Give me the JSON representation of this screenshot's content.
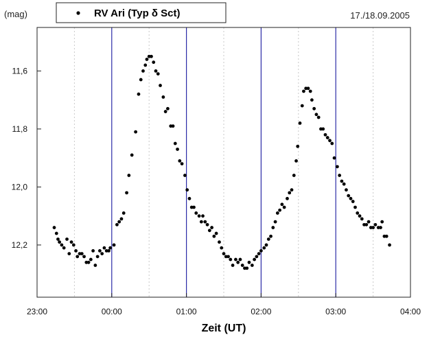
{
  "chart_data": {
    "type": "scatter",
    "ylabel": "(mag)",
    "xlabel": "Zeit (UT)",
    "date": "17./18.09.2005",
    "legend": {
      "entry": "RV Ari (Typ δ Sct)",
      "placement": "top-left"
    },
    "x_unit": "hours relative to 00:00 UT",
    "xlim": [
      -1,
      4
    ],
    "ylim": [
      12.38,
      11.45
    ],
    "y_inverted": true,
    "x_ticks": [
      {
        "value": -1,
        "label": "23:00"
      },
      {
        "value": 0,
        "label": "00:00"
      },
      {
        "value": 1,
        "label": "01:00"
      },
      {
        "value": 2,
        "label": "02:00"
      },
      {
        "value": 3,
        "label": "03:00"
      },
      {
        "value": 4,
        "label": "04:00"
      }
    ],
    "y_ticks": [
      {
        "value": 11.6,
        "label": "11,6"
      },
      {
        "value": 11.8,
        "label": "11,8"
      },
      {
        "value": 12.0,
        "label": "12,0"
      },
      {
        "value": 12.2,
        "label": "12,2"
      }
    ],
    "major_gridlines_x": [
      0,
      1,
      2,
      3
    ],
    "minor_gridlines_x": [
      -0.5,
      0.5,
      1.5,
      2.5,
      3.5
    ],
    "colors": {
      "points": "#000000",
      "major_grid": "#2a2aa6",
      "minor_grid": "#c8c8c8",
      "axis": "#222222"
    },
    "series": [
      {
        "name": "RV Ari (Typ δ Sct)",
        "points": [
          [
            -0.77,
            12.14
          ],
          [
            -0.74,
            12.16
          ],
          [
            -0.72,
            12.18
          ],
          [
            -0.7,
            12.19
          ],
          [
            -0.67,
            12.2
          ],
          [
            -0.64,
            12.21
          ],
          [
            -0.6,
            12.18
          ],
          [
            -0.57,
            12.23
          ],
          [
            -0.54,
            12.19
          ],
          [
            -0.51,
            12.2
          ],
          [
            -0.48,
            12.22
          ],
          [
            -0.46,
            12.24
          ],
          [
            -0.43,
            12.23
          ],
          [
            -0.4,
            12.23
          ],
          [
            -0.37,
            12.24
          ],
          [
            -0.34,
            12.26
          ],
          [
            -0.31,
            12.26
          ],
          [
            -0.28,
            12.25
          ],
          [
            -0.25,
            12.22
          ],
          [
            -0.22,
            12.27
          ],
          [
            -0.19,
            12.24
          ],
          [
            -0.16,
            12.22
          ],
          [
            -0.13,
            12.23
          ],
          [
            -0.1,
            12.21
          ],
          [
            -0.07,
            12.22
          ],
          [
            -0.04,
            12.22
          ],
          [
            -0.02,
            12.21
          ],
          [
            0.03,
            12.2
          ],
          [
            0.07,
            12.13
          ],
          [
            0.1,
            12.12
          ],
          [
            0.13,
            12.11
          ],
          [
            0.16,
            12.09
          ],
          [
            0.2,
            12.02
          ],
          [
            0.23,
            11.96
          ],
          [
            0.27,
            11.89
          ],
          [
            0.32,
            11.81
          ],
          [
            0.36,
            11.68
          ],
          [
            0.39,
            11.63
          ],
          [
            0.42,
            11.6
          ],
          [
            0.45,
            11.58
          ],
          [
            0.47,
            11.56
          ],
          [
            0.5,
            11.55
          ],
          [
            0.53,
            11.55
          ],
          [
            0.56,
            11.57
          ],
          [
            0.59,
            11.6
          ],
          [
            0.62,
            11.61
          ],
          [
            0.65,
            11.65
          ],
          [
            0.69,
            11.69
          ],
          [
            0.72,
            11.74
          ],
          [
            0.75,
            11.73
          ],
          [
            0.79,
            11.79
          ],
          [
            0.82,
            11.79
          ],
          [
            0.85,
            11.85
          ],
          [
            0.88,
            11.87
          ],
          [
            0.91,
            11.91
          ],
          [
            0.94,
            11.92
          ],
          [
            0.98,
            11.96
          ],
          [
            1.01,
            12.01
          ],
          [
            1.04,
            12.04
          ],
          [
            1.07,
            12.07
          ],
          [
            1.1,
            12.07
          ],
          [
            1.13,
            12.09
          ],
          [
            1.17,
            12.1
          ],
          [
            1.2,
            12.12
          ],
          [
            1.22,
            12.1
          ],
          [
            1.25,
            12.12
          ],
          [
            1.28,
            12.13
          ],
          [
            1.31,
            12.15
          ],
          [
            1.34,
            12.14
          ],
          [
            1.37,
            12.17
          ],
          [
            1.4,
            12.16
          ],
          [
            1.44,
            12.19
          ],
          [
            1.47,
            12.21
          ],
          [
            1.5,
            12.23
          ],
          [
            1.53,
            12.24
          ],
          [
            1.56,
            12.24
          ],
          [
            1.59,
            12.25
          ],
          [
            1.62,
            12.27
          ],
          [
            1.66,
            12.25
          ],
          [
            1.69,
            12.26
          ],
          [
            1.72,
            12.25
          ],
          [
            1.75,
            12.27
          ],
          [
            1.78,
            12.28
          ],
          [
            1.81,
            12.28
          ],
          [
            1.84,
            12.26
          ],
          [
            1.88,
            12.27
          ],
          [
            1.91,
            12.25
          ],
          [
            1.94,
            12.24
          ],
          [
            1.97,
            12.23
          ],
          [
            2.0,
            12.22
          ],
          [
            2.04,
            12.21
          ],
          [
            2.07,
            12.2
          ],
          [
            2.1,
            12.18
          ],
          [
            2.13,
            12.17
          ],
          [
            2.16,
            12.14
          ],
          [
            2.19,
            12.12
          ],
          [
            2.22,
            12.09
          ],
          [
            2.25,
            12.08
          ],
          [
            2.28,
            12.06
          ],
          [
            2.31,
            12.07
          ],
          [
            2.35,
            12.04
          ],
          [
            2.38,
            12.02
          ],
          [
            2.41,
            12.01
          ],
          [
            2.44,
            11.96
          ],
          [
            2.47,
            11.91
          ],
          [
            2.49,
            11.86
          ],
          [
            2.52,
            11.78
          ],
          [
            2.55,
            11.72
          ],
          [
            2.57,
            11.67
          ],
          [
            2.6,
            11.66
          ],
          [
            2.63,
            11.66
          ],
          [
            2.66,
            11.67
          ],
          [
            2.68,
            11.7
          ],
          [
            2.71,
            11.73
          ],
          [
            2.74,
            11.75
          ],
          [
            2.77,
            11.76
          ],
          [
            2.8,
            11.8
          ],
          [
            2.83,
            11.8
          ],
          [
            2.86,
            11.82
          ],
          [
            2.89,
            11.83
          ],
          [
            2.92,
            11.84
          ],
          [
            2.95,
            11.85
          ],
          [
            2.98,
            11.9
          ],
          [
            3.02,
            11.93
          ],
          [
            3.05,
            11.96
          ],
          [
            3.08,
            11.98
          ],
          [
            3.11,
            11.99
          ],
          [
            3.14,
            12.01
          ],
          [
            3.17,
            12.03
          ],
          [
            3.2,
            12.04
          ],
          [
            3.23,
            12.05
          ],
          [
            3.26,
            12.07
          ],
          [
            3.29,
            12.09
          ],
          [
            3.32,
            12.1
          ],
          [
            3.35,
            12.11
          ],
          [
            3.38,
            12.13
          ],
          [
            3.41,
            12.13
          ],
          [
            3.44,
            12.12
          ],
          [
            3.47,
            12.14
          ],
          [
            3.5,
            12.14
          ],
          [
            3.53,
            12.13
          ],
          [
            3.57,
            12.14
          ],
          [
            3.6,
            12.14
          ],
          [
            3.62,
            12.12
          ],
          [
            3.65,
            12.17
          ],
          [
            3.68,
            12.17
          ],
          [
            3.72,
            12.2
          ]
        ]
      }
    ]
  }
}
